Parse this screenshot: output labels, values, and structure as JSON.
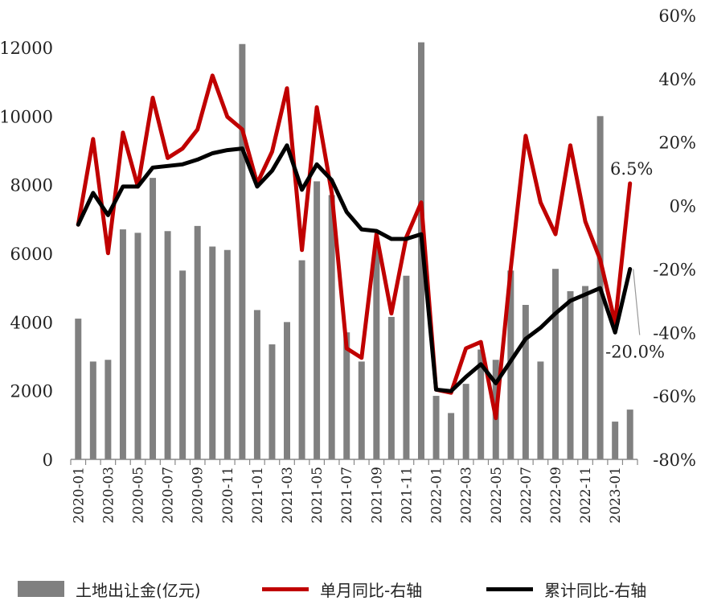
{
  "chart_data": {
    "type": "bar+line",
    "title": "",
    "categories": [
      "2020-01",
      "2020-02",
      "2020-03",
      "2020-04",
      "2020-05",
      "2020-06",
      "2020-07",
      "2020-08",
      "2020-09",
      "2020-10",
      "2020-11",
      "2020-12",
      "2021-01",
      "2021-02",
      "2021-03",
      "2021-04",
      "2021-05",
      "2021-06",
      "2021-07",
      "2021-08",
      "2021-09",
      "2021-10",
      "2021-11",
      "2021-12",
      "2022-01",
      "2022-02",
      "2022-03",
      "2022-04",
      "2022-05",
      "2022-06",
      "2022-07",
      "2022-08",
      "2022-09",
      "2022-10",
      "2022-11",
      "2022-12",
      "2023-01",
      "2023-02"
    ],
    "x_tick_labels": [
      "2020-01",
      "2020-03",
      "2020-05",
      "2020-07",
      "2020-09",
      "2020-11",
      "2021-01",
      "2021-03",
      "2021-05",
      "2021-07",
      "2021-09",
      "2021-11",
      "2022-01",
      "2022-03",
      "2022-05",
      "2022-07",
      "2022-09",
      "2022-11",
      "2023-01"
    ],
    "left_axis": {
      "ylim": [
        0,
        12000
      ],
      "ticks": [
        "0",
        "2000",
        "4000",
        "6000",
        "8000",
        "10000",
        "12000"
      ]
    },
    "right_axis": {
      "ylim": [
        -80,
        60
      ],
      "ticks": [
        "-80%",
        "-60%",
        "-40%",
        "-20%",
        "0%",
        "20%",
        "40%",
        "60%"
      ]
    },
    "series": [
      {
        "name": "土地出让金(亿元)",
        "type": "bar",
        "axis": "left",
        "color": "#808080",
        "values": [
          4100,
          2850,
          2900,
          6700,
          6600,
          8200,
          6650,
          5500,
          6800,
          6200,
          6100,
          12100,
          4350,
          3350,
          4000,
          5800,
          8100,
          7700,
          3700,
          2850,
          6200,
          4150,
          5350,
          12150,
          1850,
          1350,
          2200,
          3200,
          2900,
          5500,
          4500,
          2850,
          5550,
          4900,
          5050,
          10000,
          1100,
          1450
        ]
      },
      {
        "name": "单月同比-右轴",
        "type": "line",
        "axis": "right",
        "color": "#C00000",
        "values": [
          -6,
          21,
          -15,
          23,
          6,
          34,
          15,
          18,
          24,
          41,
          28,
          24,
          7,
          17,
          37,
          -14,
          31,
          4,
          -45,
          -48,
          -9,
          -34,
          -10,
          1,
          -58,
          -59,
          -45,
          -43,
          -67,
          -20,
          22,
          1,
          -9,
          19,
          -5,
          -17,
          -37,
          7
        ]
      },
      {
        "name": "累计同比-右轴",
        "type": "line",
        "axis": "right",
        "color": "#000000",
        "values": [
          -6,
          4,
          -3,
          6,
          6,
          12,
          12.5,
          13,
          14.5,
          16.5,
          17.5,
          18,
          6,
          11,
          19,
          5,
          13,
          8,
          -2,
          -7.5,
          -8,
          -10.5,
          -10.5,
          -9,
          -58,
          -58.5,
          -54,
          -50,
          -56,
          -49,
          -42,
          -38.5,
          -34,
          -30,
          -28,
          -26,
          -40,
          -20
        ]
      }
    ],
    "annotations": [
      {
        "text": "6.5%",
        "series": "单月同比-右轴",
        "category": "2023-02"
      },
      {
        "text": "-20.0%",
        "series": "累计同比-右轴",
        "category": "2023-02"
      }
    ],
    "grid": false,
    "legend_position": "bottom"
  }
}
